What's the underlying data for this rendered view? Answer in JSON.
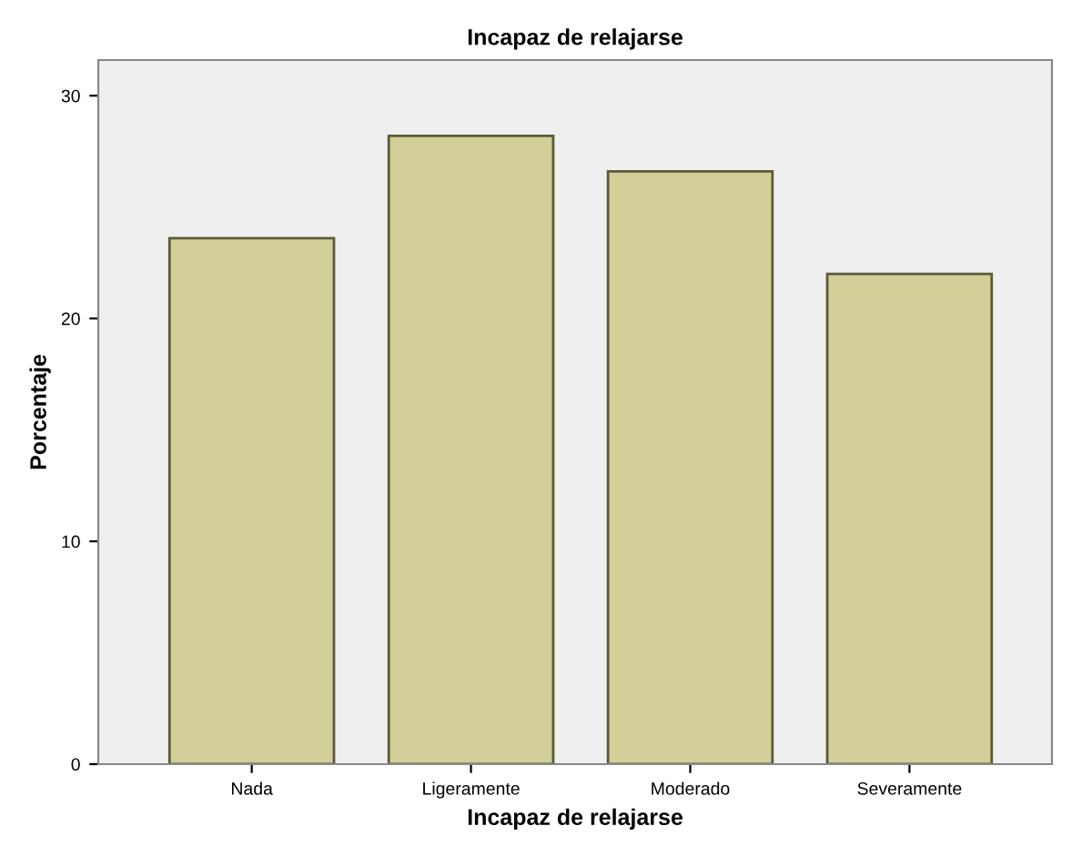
{
  "chart_data": {
    "type": "bar",
    "title": "Incapaz de relajarse",
    "xlabel": "Incapaz de relajarse",
    "ylabel": "Porcentaje",
    "categories": [
      "Nada",
      "Ligeramente",
      "Moderado",
      "Severamente"
    ],
    "values": [
      23.6,
      28.2,
      26.6,
      22.0
    ],
    "color": "#d3cf98",
    "ylim": [
      0,
      31.6
    ],
    "yticks": [
      0,
      10,
      20,
      30
    ],
    "grid": false
  }
}
